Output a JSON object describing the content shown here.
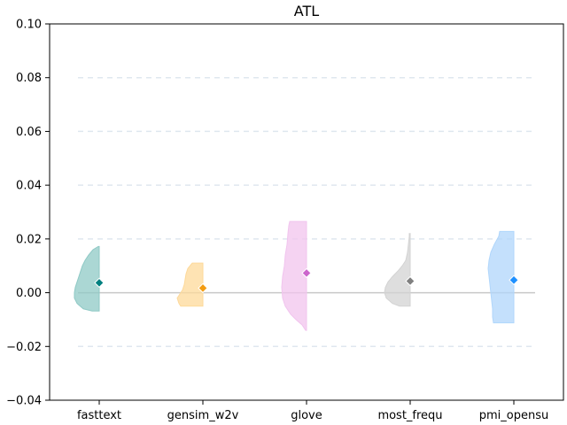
{
  "chart_data": {
    "type": "violin",
    "title": "ATL",
    "xlabel": "",
    "ylabel": "",
    "ylim": [
      -0.04,
      0.1
    ],
    "yticks": [
      -0.04,
      -0.02,
      0.0,
      0.02,
      0.04,
      0.06,
      0.08,
      0.1
    ],
    "ytick_labels": [
      "−0.04",
      "−0.02",
      "0.00",
      "0.02",
      "0.04",
      "0.06",
      "0.08",
      "0.10"
    ],
    "grid": "horizontal dashed",
    "reference_line": 0.0,
    "categories": [
      "fasttext",
      "gensim_w2v",
      "glove",
      "most_frequ",
      "pmi_opensu"
    ],
    "series": [
      {
        "category": "fasttext",
        "fill": "#8fc9c5",
        "marker": "#008080",
        "mean": 0.0037,
        "min": -0.0068,
        "max": 0.0172,
        "profile": [
          [
            -0.0068,
            8
          ],
          [
            -0.006,
            18
          ],
          [
            -0.004,
            25
          ],
          [
            -0.002,
            28
          ],
          [
            0.0,
            28
          ],
          [
            0.002,
            27
          ],
          [
            0.004,
            25
          ],
          [
            0.006,
            23
          ],
          [
            0.008,
            21
          ],
          [
            0.01,
            19
          ],
          [
            0.012,
            16
          ],
          [
            0.014,
            12
          ],
          [
            0.016,
            7
          ],
          [
            0.0172,
            1
          ]
        ]
      },
      {
        "category": "gensim_w2v",
        "fill": "#fdd99a",
        "marker": "#f39c12",
        "mean": 0.0017,
        "min": -0.005,
        "max": 0.011,
        "profile": [
          [
            -0.005,
            25
          ],
          [
            -0.004,
            27
          ],
          [
            -0.002,
            29
          ],
          [
            -0.0005,
            26
          ],
          [
            0.001,
            23
          ],
          [
            0.003,
            21
          ],
          [
            0.005,
            20
          ],
          [
            0.007,
            19
          ],
          [
            0.009,
            17
          ],
          [
            0.011,
            12
          ]
        ]
      },
      {
        "category": "glove",
        "fill": "#f1c4ee",
        "marker": "#cc66cc",
        "mean": 0.0073,
        "min": -0.014,
        "max": 0.0265,
        "profile": [
          [
            -0.014,
            1
          ],
          [
            -0.012,
            5
          ],
          [
            -0.01,
            12
          ],
          [
            -0.008,
            18
          ],
          [
            -0.005,
            24
          ],
          [
            -0.002,
            27
          ],
          [
            0.002,
            28
          ],
          [
            0.006,
            27
          ],
          [
            0.01,
            25
          ],
          [
            0.014,
            24
          ],
          [
            0.018,
            22
          ],
          [
            0.022,
            21
          ],
          [
            0.025,
            20
          ],
          [
            0.0265,
            19
          ]
        ]
      },
      {
        "category": "most_frequ",
        "fill": "#d3d3d3",
        "marker": "#808080",
        "mean": 0.0043,
        "min": -0.005,
        "max": 0.022,
        "profile": [
          [
            -0.005,
            12
          ],
          [
            -0.004,
            20
          ],
          [
            -0.002,
            27
          ],
          [
            0.0,
            29
          ],
          [
            0.002,
            28
          ],
          [
            0.004,
            25
          ],
          [
            0.006,
            20
          ],
          [
            0.008,
            14
          ],
          [
            0.01,
            9
          ],
          [
            0.012,
            5
          ],
          [
            0.015,
            3
          ],
          [
            0.018,
            2
          ],
          [
            0.021,
            1
          ],
          [
            0.022,
            1
          ]
        ]
      },
      {
        "category": "pmi_opensu",
        "fill": "#b0d6fb",
        "marker": "#1e90ff",
        "mean": 0.0047,
        "min": -0.0112,
        "max": 0.0228,
        "profile": [
          [
            -0.0112,
            23
          ],
          [
            -0.009,
            24
          ],
          [
            -0.006,
            24
          ],
          [
            -0.003,
            25
          ],
          [
            0.0,
            26
          ],
          [
            0.003,
            27
          ],
          [
            0.006,
            28
          ],
          [
            0.009,
            29
          ],
          [
            0.012,
            28
          ],
          [
            0.015,
            26
          ],
          [
            0.018,
            22
          ],
          [
            0.021,
            17
          ],
          [
            0.0228,
            16
          ]
        ]
      }
    ]
  }
}
